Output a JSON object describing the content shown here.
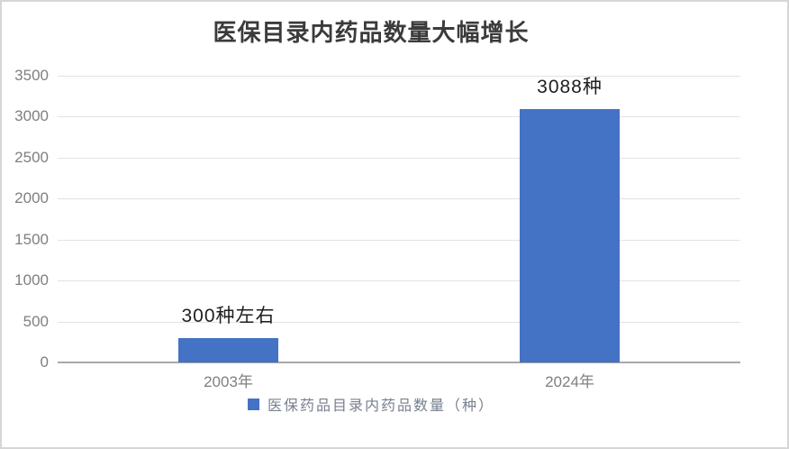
{
  "chart_data": {
    "type": "bar",
    "title": "医保目录内药品数量大幅增长",
    "categories": [
      "2003年",
      "2024年"
    ],
    "series": [
      {
        "name": "医保药品目录内药品数量（种）",
        "values": [
          300,
          3088
        ],
        "color": "#4472C4"
      }
    ],
    "data_labels": [
      "300种左右",
      "3088种"
    ],
    "yticks": [
      0,
      500,
      1000,
      1500,
      2000,
      2500,
      3000,
      3500
    ],
    "ylim": [
      0,
      3500
    ],
    "xlabel": "",
    "ylabel": "",
    "grid": true,
    "legend_position": "bottom",
    "legend_label": "医保药品目录内药品数量（种）",
    "colors": {
      "bar": "#4472C4",
      "title_text": "#3b3b3b",
      "axis_text": "#7f7f7f",
      "data_label_text": "#1f1f1f",
      "gridline": "#e2e2e2",
      "baseline": "#a8a8a8",
      "legend_text": "#76808f",
      "frame_border": "#d6d6d6",
      "background": "#ffffff"
    }
  }
}
